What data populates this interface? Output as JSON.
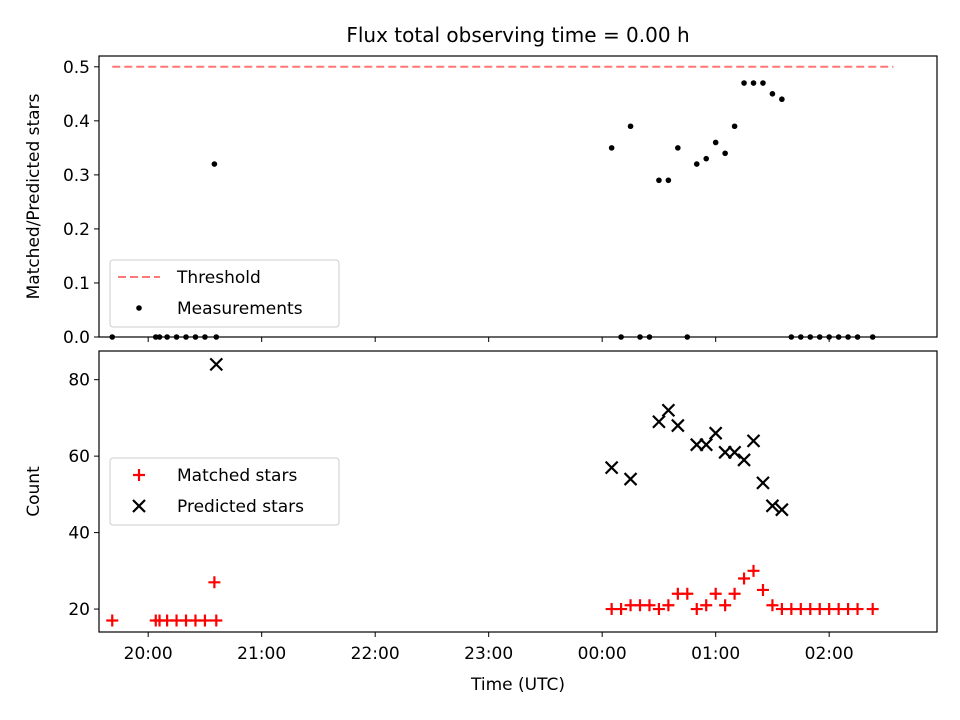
{
  "title": "Flux total observing time = 0.00 h",
  "colors": {
    "threshold": "#ff7777",
    "measurement": "#000000",
    "matched": "#ff0000",
    "predicted": "#000000"
  },
  "chart_data": [
    {
      "type": "scatter",
      "ylabel": "Matched/Predicted stars",
      "ylim": [
        0,
        0.52
      ],
      "yticks": [
        "0.0",
        "0.1",
        "0.2",
        "0.3",
        "0.4",
        "0.5"
      ],
      "xlim": [
        "19:34",
        "02:57"
      ],
      "xticks": [
        "20:00",
        "21:00",
        "22:00",
        "23:00",
        "00:00",
        "01:00",
        "02:00"
      ],
      "xtick_labels_visible": false,
      "legend_position": "lower left",
      "series": [
        {
          "name": "Threshold",
          "style": "dashed-line",
          "x": [
            "19:41",
            "02:34"
          ],
          "y": [
            0.5,
            0.5
          ]
        },
        {
          "name": "Measurements",
          "style": "dot",
          "x": [
            "19:41",
            "20:04",
            "20:06",
            "20:10",
            "20:15",
            "20:20",
            "20:25",
            "20:30",
            "20:35",
            "20:36",
            "00:05",
            "00:10",
            "00:15",
            "00:20",
            "00:25",
            "00:30",
            "00:35",
            "00:40",
            "00:45",
            "00:50",
            "00:55",
            "01:00",
            "01:05",
            "01:10",
            "01:15",
            "01:20",
            "01:25",
            "01:30",
            "01:35",
            "01:40",
            "01:45",
            "01:50",
            "01:55",
            "02:00",
            "02:05",
            "02:10",
            "02:15",
            "02:23"
          ],
          "y": [
            0.0,
            0.0,
            0.0,
            0.0,
            0.0,
            0.0,
            0.0,
            0.0,
            0.32,
            0.0,
            0.35,
            0.0,
            0.39,
            0.0,
            0.0,
            0.29,
            0.29,
            0.35,
            0.0,
            0.32,
            0.33,
            0.36,
            0.34,
            0.39,
            0.47,
            0.47,
            0.47,
            0.45,
            0.44,
            0.0,
            0.0,
            0.0,
            0.0,
            0.0,
            0.0,
            0.0,
            0.0,
            0.0
          ]
        }
      ]
    },
    {
      "type": "scatter",
      "ylabel": "Count",
      "xlabel": "Time (UTC)",
      "ylim": [
        14,
        87.5
      ],
      "yticks": [
        "20",
        "40",
        "60",
        "80"
      ],
      "xlim": [
        "19:34",
        "02:57"
      ],
      "xticks": [
        "20:00",
        "21:00",
        "22:00",
        "23:00",
        "00:00",
        "01:00",
        "02:00"
      ],
      "legend_position": "center left",
      "series": [
        {
          "name": "Matched stars",
          "marker": "plus",
          "x": [
            "19:41",
            "20:04",
            "20:06",
            "20:10",
            "20:15",
            "20:20",
            "20:25",
            "20:30",
            "20:35",
            "20:36",
            "00:05",
            "00:10",
            "00:15",
            "00:20",
            "00:25",
            "00:30",
            "00:35",
            "00:40",
            "00:45",
            "00:50",
            "00:55",
            "01:00",
            "01:05",
            "01:10",
            "01:15",
            "01:20",
            "01:25",
            "01:30",
            "01:35",
            "01:40",
            "01:45",
            "01:50",
            "01:55",
            "02:00",
            "02:05",
            "02:10",
            "02:15",
            "02:23"
          ],
          "y": [
            17,
            17,
            17,
            17,
            17,
            17,
            17,
            17,
            27,
            17,
            20,
            20,
            21,
            21,
            21,
            20,
            21,
            24,
            24,
            20,
            21,
            24,
            21,
            24,
            28,
            30,
            25,
            21,
            20,
            20,
            20,
            20,
            20,
            20,
            20,
            20,
            20,
            20
          ]
        },
        {
          "name": "Predicted stars",
          "marker": "x",
          "x": [
            "20:36",
            "00:05",
            "00:15",
            "00:30",
            "00:35",
            "00:40",
            "00:50",
            "00:55",
            "01:00",
            "01:05",
            "01:10",
            "01:15",
            "01:20",
            "01:25",
            "01:30",
            "01:35"
          ],
          "y": [
            84,
            57,
            54,
            69,
            72,
            68,
            63,
            63,
            66,
            61,
            61,
            59,
            64,
            53,
            47,
            46
          ]
        }
      ]
    }
  ]
}
